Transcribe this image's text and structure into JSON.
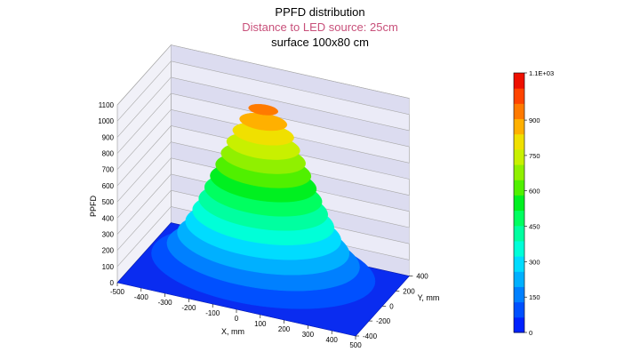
{
  "chart_data": {
    "type": "surface",
    "title": "PPFD distribution",
    "subtitle": "Distance to LED source: 25cm",
    "subtitle2": "surface  100x80 cm",
    "xlabel": "X, mm",
    "ylabel": "Y, mm",
    "zlabel": "PPFD",
    "x_ticks": [
      "-500",
      "-400",
      "-300",
      "-200",
      "-100",
      "0",
      "100",
      "200",
      "300",
      "400",
      "500"
    ],
    "y_ticks": [
      "-400",
      "-200",
      "0",
      "200",
      "400"
    ],
    "z_ticks": [
      "0",
      "100",
      "200",
      "300",
      "400",
      "500",
      "600",
      "700",
      "800",
      "900",
      "1000",
      "1100"
    ],
    "xlim": [
      -500,
      500
    ],
    "ylim": [
      -400,
      400
    ],
    "zlim": [
      0,
      1100
    ],
    "peak": {
      "x": 0,
      "y": 0,
      "value": 1100
    },
    "levels_step": 75,
    "colorbar": {
      "min": 0,
      "max": 1100,
      "ticks": [
        "0",
        "150",
        "300",
        "450",
        "600",
        "750",
        "900",
        "1.1E+03"
      ],
      "colors": [
        "#0022ff",
        "#0050ff",
        "#0080ff",
        "#00b0ff",
        "#00dcff",
        "#00ffd8",
        "#00ffa0",
        "#00ff60",
        "#00f020",
        "#50f000",
        "#90f000",
        "#c8f000",
        "#f0e000",
        "#ffb000",
        "#ff7a00",
        "#ff4400",
        "#ee1000"
      ]
    }
  }
}
